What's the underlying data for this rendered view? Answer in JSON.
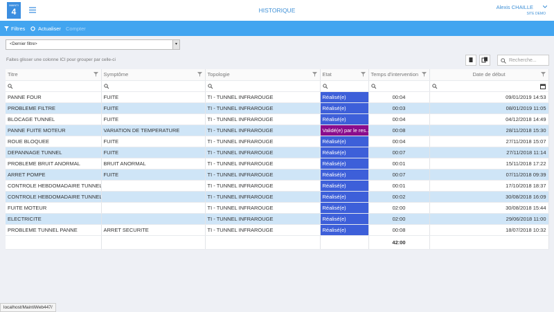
{
  "header": {
    "logo": "MAINTI",
    "logo_number": "4",
    "title": "HISTORIQUE",
    "user": "Alexis CHAILLE",
    "site": "SITE DEMO"
  },
  "toolbar": {
    "filters": "Filtres",
    "refresh": "Actualiser",
    "count": "Compter"
  },
  "filter_select": "<Dernier filtre>",
  "group_hint": "Faites glisser une colonne ICI pour grouper par celle-ci",
  "search_placeholder": "Recherche...",
  "table": {
    "columns": [
      "Titre",
      "Symptôme",
      "Topologie",
      "Etat",
      "Temps d'intervention",
      "Date de début"
    ],
    "rows": [
      [
        "PANNE FOUR",
        "FUITE",
        "TI - TUNNEL INFRAROUGE",
        "Réalisé(e)",
        "00:04",
        "09/01/2019 14:53"
      ],
      [
        "PROBLEME FILTRE",
        "FUITE",
        "TI - TUNNEL INFRAROUGE",
        "Réalisé(e)",
        "00:03",
        "08/01/2019 11:05"
      ],
      [
        "BLOCAGE TUNNEL",
        "FUITE",
        "TI - TUNNEL INFRAROUGE",
        "Réalisé(e)",
        "00:04",
        "04/12/2018 14:49"
      ],
      [
        "PANNE FUITE MOTEUR",
        "VARIATION DE TEMPERATURE",
        "TI - TUNNEL INFRAROUGE",
        "Validé(e) par le res...",
        "00:08",
        "28/11/2018 15:30"
      ],
      [
        "ROUE BLOQUEE",
        "FUITE",
        "TI - TUNNEL INFRAROUGE",
        "Réalisé(e)",
        "00:04",
        "27/11/2018 15:07"
      ],
      [
        "DEPANNAGE TUNNEL",
        "FUITE",
        "TI - TUNNEL INFRAROUGE",
        "Réalisé(e)",
        "00:07",
        "27/11/2018 11:14"
      ],
      [
        "PROBLEME BRUIT ANORMAL",
        "BRUIT ANORMAL",
        "TI - TUNNEL INFRAROUGE",
        "Réalisé(e)",
        "00:01",
        "15/11/2018 17:22"
      ],
      [
        "ARRET POMPE",
        "FUITE",
        "TI - TUNNEL INFRAROUGE",
        "Réalisé(e)",
        "00:07",
        "07/11/2018 09:39"
      ],
      [
        "CONTROLE HEBDOMADAIRE TUNNEL",
        null,
        "TI - TUNNEL INFRAROUGE",
        "Réalisé(e)",
        "00:01",
        "17/10/2018 18:37"
      ],
      [
        "CONTROLE HEBDOMADAIRE TUNNEL",
        null,
        "TI - TUNNEL INFRAROUGE",
        "Réalisé(e)",
        "00:02",
        "30/08/2018 16:09"
      ],
      [
        "FUITE MOTEUR",
        null,
        "TI - TUNNEL INFRAROUGE",
        "Réalisé(e)",
        "02:00",
        "30/08/2018 15:44"
      ],
      [
        "ELECTRICITE",
        null,
        "TI - TUNNEL INFRAROUGE",
        "Réalisé(e)",
        "02:00",
        "29/06/2018 11:00"
      ],
      [
        "PROBLEME TUNNEL PANNE",
        "ARRET SECURITE",
        "TI - TUNNEL INFRAROUGE",
        "Réalisé(e)",
        "00:08",
        "18/07/2018 10:32"
      ]
    ],
    "state_colors": [
      "#3d5fd9",
      "#3d5fd9",
      "#3d5fd9",
      "#8a0d8c",
      "#3d5fd9",
      "#3d5fd9",
      "#3d5fd9",
      "#3d5fd9",
      "#3d5fd9",
      "#3d5fd9",
      "#3d5fd9",
      "#3d5fd9",
      "#3d5fd9"
    ],
    "total": "42:00"
  },
  "status_bar": "localhost/MaintiWeb447/"
}
